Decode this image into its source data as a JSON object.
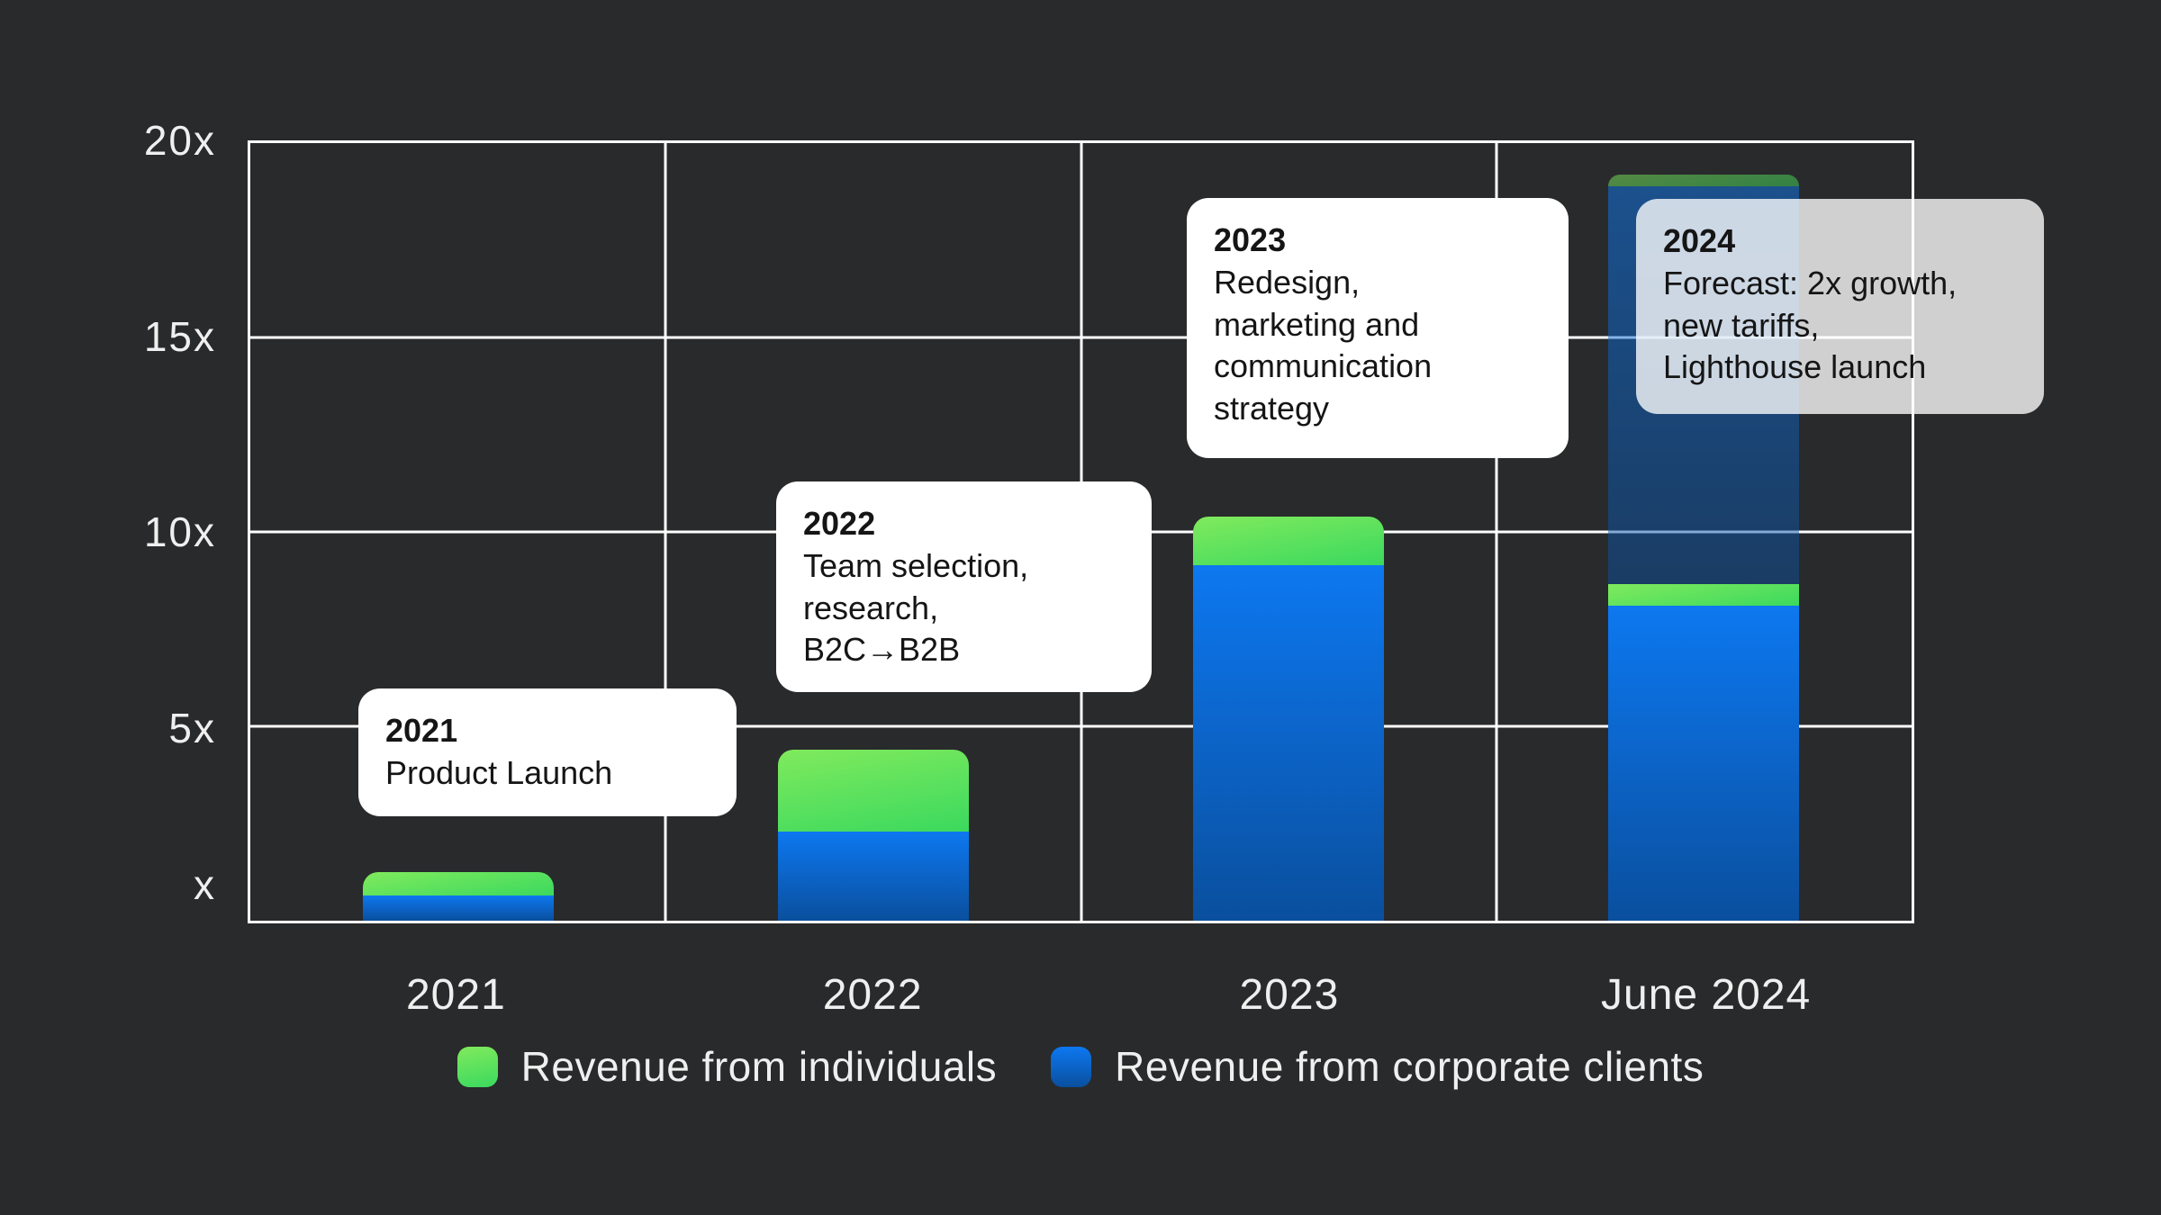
{
  "chart_data": {
    "type": "bar",
    "stacked": true,
    "title": "",
    "categories": [
      "2021",
      "2022",
      "2023",
      "June 2024"
    ],
    "y_axis": {
      "unit": "x (revenue multiple)",
      "ylim": [
        0,
        20
      ],
      "tick_labels": [
        "20x",
        "15x",
        "10x",
        "5x",
        "x"
      ],
      "tick_values": [
        20,
        15,
        10,
        5,
        1
      ],
      "gridline_values": [
        15,
        10,
        5
      ],
      "grid": true
    },
    "series": [
      {
        "key": "corporate",
        "name": "Revenue from corporate clients",
        "values": [
          0.65,
          2.3,
          9.15,
          8.1
        ]
      },
      {
        "key": "individuals",
        "name": "Revenue from individuals",
        "values": [
          0.6,
          2.1,
          1.25,
          0.55
        ]
      },
      {
        "key": "corporate_forecast",
        "name": "Revenue from corporate clients (forecast, dimmed)",
        "values": [
          0,
          0,
          0,
          10.25
        ]
      },
      {
        "key": "individuals_forecast",
        "name": "Revenue from individuals (forecast, dimmed)",
        "values": [
          0,
          0,
          0,
          0.3
        ]
      }
    ],
    "totals_x": [
      1.25,
      4.4,
      10.4,
      19.2
    ],
    "legend": [
      {
        "label": "Revenue from individuals",
        "series": "individuals"
      },
      {
        "label": "Revenue from corporate clients",
        "series": "corporate"
      }
    ],
    "annotations": [
      {
        "year": "2021",
        "text": "Product Launch"
      },
      {
        "year": "2022",
        "text": "Team selection,\nresearch,\nB2C→B2B"
      },
      {
        "year": "2023",
        "text": "Redesign,\nmarketing and\ncommunication\nstrategy"
      },
      {
        "year": "2024",
        "text": "Forecast: 2x growth,\nnew tariffs,\nLighthouse launch"
      }
    ],
    "colors": {
      "background": "#292a2b",
      "gridline": "#ffffff",
      "green_top": "#80ea5d",
      "green_bottom": "#3bd95e",
      "blue_top": "#0d78f0",
      "blue_bottom": "#0a4f9e",
      "forecast_opacity": 0.5,
      "card_bg": "#ffffff",
      "card_bg_translucent": "rgba(255,255,255,0.78)",
      "text_light": "#efefef",
      "text_dark": "#151515"
    },
    "legend_position": "bottom"
  }
}
